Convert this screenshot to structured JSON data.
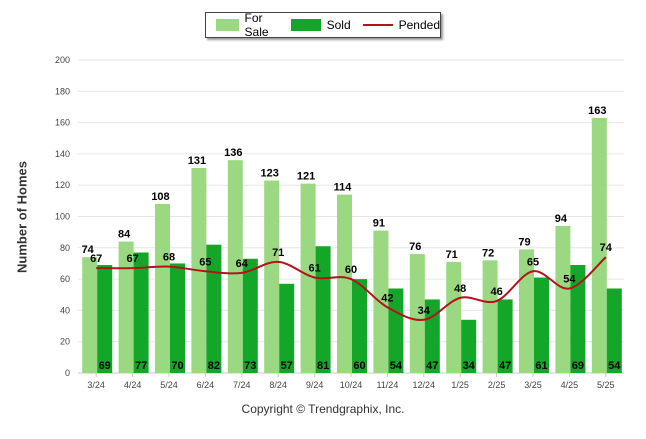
{
  "chart_data": {
    "type": "bar",
    "categories": [
      "3/24",
      "4/24",
      "5/24",
      "6/24",
      "7/24",
      "8/24",
      "9/24",
      "10/24",
      "11/24",
      "12/24",
      "1/25",
      "2/25",
      "3/25",
      "4/25",
      "5/25"
    ],
    "series": [
      {
        "name": "For Sale",
        "type": "bar",
        "color": "#9ad982",
        "values": [
          74,
          84,
          108,
          131,
          136,
          123,
          121,
          114,
          91,
          76,
          71,
          72,
          79,
          94,
          163
        ]
      },
      {
        "name": "Sold",
        "type": "bar",
        "color": "#14a628",
        "values": [
          69,
          77,
          70,
          82,
          73,
          57,
          81,
          60,
          54,
          47,
          34,
          47,
          61,
          69,
          54
        ]
      },
      {
        "name": "Pended",
        "type": "line",
        "color": "#b3131b",
        "values": [
          67,
          67,
          68,
          65,
          64,
          71,
          61,
          60,
          42,
          34,
          48,
          46,
          65,
          54,
          74
        ]
      }
    ],
    "title": "",
    "xlabel": "",
    "ylabel": "Number of Homes",
    "ylim": [
      0,
      200
    ],
    "yticks": [
      0,
      20,
      40,
      60,
      80,
      100,
      120,
      140,
      160,
      180,
      200
    ],
    "grid": true,
    "legend_position": "top-center"
  },
  "legend": {
    "for_sale": "For Sale",
    "sold": "Sold",
    "pended": "Pended"
  },
  "footer": {
    "copyright": "Copyright © Trendgraphix, Inc."
  }
}
